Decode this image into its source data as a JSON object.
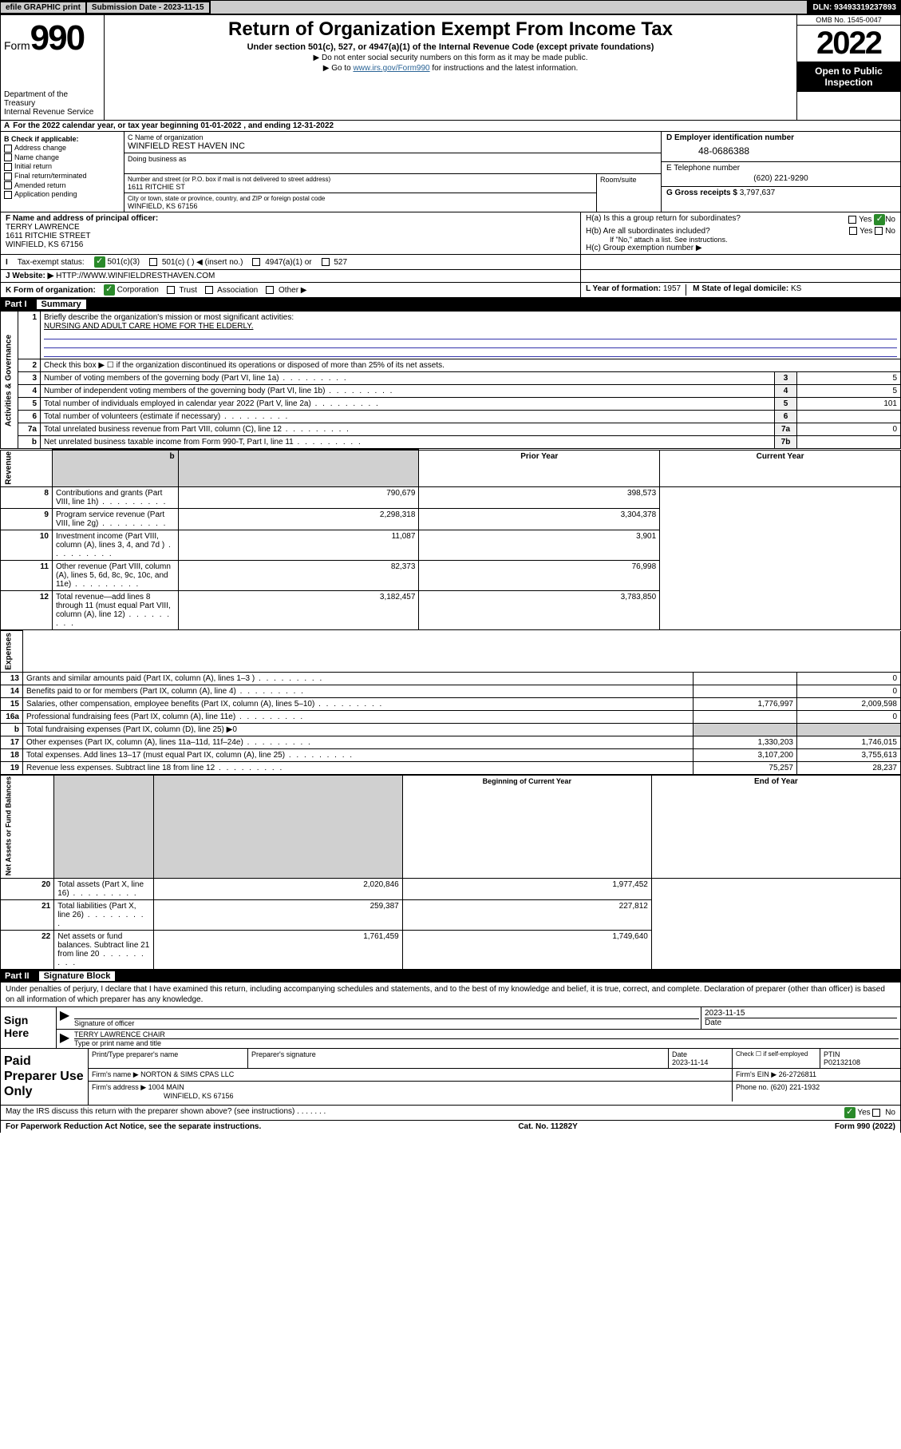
{
  "top": {
    "efile": "efile GRAPHIC print",
    "subdate_lbl": "Submission Date - 2023-11-15",
    "dln": "DLN: 93493319237893"
  },
  "header": {
    "form_word": "Form",
    "form_num": "990",
    "dept": "Department of the Treasury",
    "irs": "Internal Revenue Service",
    "title": "Return of Organization Exempt From Income Tax",
    "sub": "Under section 501(c), 527, or 4947(a)(1) of the Internal Revenue Code (except private foundations)",
    "note1": "▶ Do not enter social security numbers on this form as it may be made public.",
    "note2_pre": "▶ Go to ",
    "note2_link": "www.irs.gov/Form990",
    "note2_post": " for instructions and the latest information.",
    "omb": "OMB No. 1545-0047",
    "year": "2022",
    "open": "Open to Public Inspection"
  },
  "section_a": {
    "taxyear": "For the 2022 calendar year, or tax year beginning 01-01-2022   , and ending 12-31-2022",
    "b_lbl": "B Check if applicable:",
    "b_opts": [
      "Address change",
      "Name change",
      "Initial return",
      "Final return/terminated",
      "Amended return",
      "Application pending"
    ],
    "c_name_lbl": "C Name of organization",
    "c_name": "WINFIELD REST HAVEN INC",
    "dba_lbl": "Doing business as",
    "addr_lbl": "Number and street (or P.O. box if mail is not delivered to street address)",
    "room_lbl": "Room/suite",
    "addr": "1611 RITCHIE ST",
    "city_lbl": "City or town, state or province, country, and ZIP or foreign postal code",
    "city": "WINFIELD, KS  67156",
    "d_lbl": "D Employer identification number",
    "ein": "48-0686388",
    "e_lbl": "E Telephone number",
    "tel": "(620) 221-9290",
    "g_lbl": "G Gross receipts $",
    "gross": "3,797,637",
    "f_lbl": "F Name and address of principal officer:",
    "f_name": "TERRY LAWRENCE",
    "f_addr1": "1611 RITCHIE STREET",
    "f_addr2": "WINFIELD, KS  67156",
    "ha": "H(a)  Is this a group return for subordinates?",
    "hb": "H(b)  Are all subordinates included?",
    "hb_note": "If \"No,\" attach a list. See instructions.",
    "hc": "H(c)  Group exemption number ▶",
    "yes": "Yes",
    "no": "No",
    "i_lbl": "Tax-exempt status:",
    "i_501c3": "501(c)(3)",
    "i_501c": "501(c) (  ) ◀ (insert no.)",
    "i_4947": "4947(a)(1) or",
    "i_527": "527",
    "j_lbl": "Website: ▶",
    "website": "HTTP://WWW.WINFIELDRESTHAVEN.COM",
    "k_lbl": "K Form of organization:",
    "k_corp": "Corporation",
    "k_trust": "Trust",
    "k_assoc": "Association",
    "k_other": "Other ▶",
    "l_lbl": "L Year of formation:",
    "l_val": "1957",
    "m_lbl": "M State of legal domicile:",
    "m_val": "KS"
  },
  "part1": {
    "num": "Part I",
    "title": "Summary",
    "l1": "Briefly describe the organization's mission or most significant activities:",
    "mission": "NURSING AND ADULT CARE HOME FOR THE ELDERLY.",
    "l2": "Check this box ▶ ☐  if the organization discontinued its operations or disposed of more than 25% of its net assets.",
    "rows": [
      {
        "n": "3",
        "t": "Number of voting members of the governing body (Part VI, line 1a)",
        "box": "3",
        "v": "5"
      },
      {
        "n": "4",
        "t": "Number of independent voting members of the governing body (Part VI, line 1b)",
        "box": "4",
        "v": "5"
      },
      {
        "n": "5",
        "t": "Total number of individuals employed in calendar year 2022 (Part V, line 2a)",
        "box": "5",
        "v": "101"
      },
      {
        "n": "6",
        "t": "Total number of volunteers (estimate if necessary)",
        "box": "6",
        "v": ""
      },
      {
        "n": "7a",
        "t": "Total unrelated business revenue from Part VIII, column (C), line 12",
        "box": "7a",
        "v": "0"
      },
      {
        "n": "b",
        "t": "Net unrelated business taxable income from Form 990-T, Part I, line 11",
        "box": "7b",
        "v": ""
      }
    ],
    "prior_hdr": "Prior Year",
    "curr_hdr": "Current Year",
    "rev_rows": [
      {
        "n": "8",
        "t": "Contributions and grants (Part VIII, line 1h)",
        "p": "790,679",
        "c": "398,573"
      },
      {
        "n": "9",
        "t": "Program service revenue (Part VIII, line 2g)",
        "p": "2,298,318",
        "c": "3,304,378"
      },
      {
        "n": "10",
        "t": "Investment income (Part VIII, column (A), lines 3, 4, and 7d )",
        "p": "11,087",
        "c": "3,901"
      },
      {
        "n": "11",
        "t": "Other revenue (Part VIII, column (A), lines 5, 6d, 8c, 9c, 10c, and 11e)",
        "p": "82,373",
        "c": "76,998"
      },
      {
        "n": "12",
        "t": "Total revenue—add lines 8 through 11 (must equal Part VIII, column (A), line 12)",
        "p": "3,182,457",
        "c": "3,783,850"
      }
    ],
    "exp_rows": [
      {
        "n": "13",
        "t": "Grants and similar amounts paid (Part IX, column (A), lines 1–3 )",
        "p": "",
        "c": "0"
      },
      {
        "n": "14",
        "t": "Benefits paid to or for members (Part IX, column (A), line 4)",
        "p": "",
        "c": "0"
      },
      {
        "n": "15",
        "t": "Salaries, other compensation, employee benefits (Part IX, column (A), lines 5–10)",
        "p": "1,776,997",
        "c": "2,009,598"
      },
      {
        "n": "16a",
        "t": "Professional fundraising fees (Part IX, column (A), line 11e)",
        "p": "",
        "c": "0"
      },
      {
        "n": "b",
        "t": "Total fundraising expenses (Part IX, column (D), line 25) ▶0",
        "p": "",
        "c": "",
        "shade": true
      },
      {
        "n": "17",
        "t": "Other expenses (Part IX, column (A), lines 11a–11d, 11f–24e)",
        "p": "1,330,203",
        "c": "1,746,015"
      },
      {
        "n": "18",
        "t": "Total expenses. Add lines 13–17 (must equal Part IX, column (A), line 25)",
        "p": "3,107,200",
        "c": "3,755,613"
      },
      {
        "n": "19",
        "t": "Revenue less expenses. Subtract line 18 from line 12",
        "p": "75,257",
        "c": "28,237"
      }
    ],
    "boy_hdr": "Beginning of Current Year",
    "eoy_hdr": "End of Year",
    "net_rows": [
      {
        "n": "20",
        "t": "Total assets (Part X, line 16)",
        "p": "2,020,846",
        "c": "1,977,452"
      },
      {
        "n": "21",
        "t": "Total liabilities (Part X, line 26)",
        "p": "259,387",
        "c": "227,812"
      },
      {
        "n": "22",
        "t": "Net assets or fund balances. Subtract line 21 from line 20",
        "p": "1,761,459",
        "c": "1,749,640"
      }
    ],
    "vlabels": {
      "ag": "Activities & Governance",
      "rev": "Revenue",
      "exp": "Expenses",
      "net": "Net Assets or Fund Balances"
    }
  },
  "part2": {
    "num": "Part II",
    "title": "Signature Block",
    "decl": "Under penalties of perjury, I declare that I have examined this return, including accompanying schedules and statements, and to the best of my knowledge and belief, it is true, correct, and complete. Declaration of preparer (other than officer) is based on all information of which preparer has any knowledge.",
    "sign_here": "Sign Here",
    "sig_officer": "Signature of officer",
    "sig_date": "2023-11-15",
    "date_lbl": "Date",
    "sig_name": "TERRY LAWRENCE CHAIR",
    "sig_name_lbl": "Type or print name and title",
    "paid": "Paid Preparer Use Only",
    "prep_name_lbl": "Print/Type preparer's name",
    "prep_sig_lbl": "Preparer's signature",
    "prep_date": "2023-11-14",
    "check_self": "Check ☐ if self-employed",
    "ptin_lbl": "PTIN",
    "ptin": "P02132108",
    "firm_name_lbl": "Firm's name  ▶",
    "firm_name": "NORTON & SIMS CPAS LLC",
    "firm_ein_lbl": "Firm's EIN ▶",
    "firm_ein": "26-2726811",
    "firm_addr_lbl": "Firm's address ▶",
    "firm_addr1": "1004 MAIN",
    "firm_addr2": "WINFIELD, KS  67156",
    "phone_lbl": "Phone no.",
    "phone": "(620) 221-1932",
    "may_irs": "May the IRS discuss this return with the preparer shown above? (see instructions)"
  },
  "footer": {
    "paperwork": "For Paperwork Reduction Act Notice, see the separate instructions.",
    "cat": "Cat. No. 11282Y",
    "form": "Form 990 (2022)"
  }
}
